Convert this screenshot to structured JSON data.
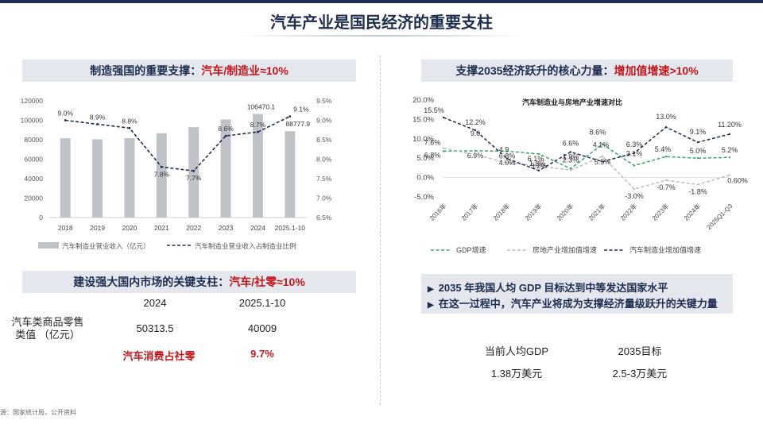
{
  "page_title": "汽车产业是国民经济的重要支柱",
  "left_banner_1": {
    "text": "制造强国的重要支撑：",
    "highlight": "汽车/制造业≈10%"
  },
  "right_banner_1": {
    "text": "支撑2035经济跃升的核心力量：",
    "highlight": "增加值增速>10%"
  },
  "left_banner_2": {
    "text": "建设强大国内市场的关键支柱：",
    "highlight": "汽车/社零≈10%"
  },
  "retail_table": {
    "col1": "2024",
    "col2": "2025.1-10",
    "row_label": "汽车类商品零售类值 （亿元）",
    "v1": "50313.5",
    "v2": "40009",
    "share_label": "汽车消费占社零",
    "share_value": "9.7%"
  },
  "bullets": [
    "2035 年我国人均 GDP 目标达到中等发达国家水平",
    "在这一过程中，汽车产业将成为支撑经济量级跃升的关键力量"
  ],
  "gdp_compare": {
    "h1": "当前人均GDP",
    "h2": "2035目标",
    "v1": "1.38万美元",
    "v2": "2.5-3万美元"
  },
  "footnote": "源：国家统计局，公开资料",
  "chart_data": [
    {
      "type": "bar",
      "categories": [
        "2018",
        "2019",
        "2020",
        "2021",
        "2022",
        "2023",
        "2024",
        "2025.1-10"
      ],
      "series": [
        {
          "name": "汽车制造业营业收入（亿元）",
          "type": "bar",
          "axis": "left",
          "color": "#bfc3c9",
          "values": [
            81500,
            80500,
            81600,
            86700,
            92900,
            100900,
            106470.1,
            88777.9
          ]
        },
        {
          "name": "汽车制造业营业收入占制造业比例",
          "type": "line",
          "axis": "right",
          "color": "#1f2d4f",
          "values": [
            9.0,
            8.9,
            8.8,
            7.8,
            7.7,
            8.6,
            8.7,
            9.1
          ]
        }
      ],
      "bar_labels": {
        "6": "106470.1",
        "7": "88777.9"
      },
      "line_labels": [
        "9.0%",
        "8.9%",
        "8.8%",
        "7.8%",
        "7.7%",
        "8.6%",
        "8.7%",
        "9.1%"
      ],
      "ylim": [
        0,
        120000
      ],
      "yticks": [
        "0",
        "20000",
        "40000",
        "60000",
        "80000",
        "100000",
        "120000"
      ],
      "y2lim": [
        6.5,
        9.5
      ],
      "y2ticks": [
        "6.5%",
        "7.0%",
        "7.5%",
        "8.0%",
        "8.5%",
        "9.0%",
        "9.5%"
      ],
      "legend_position": "bottom"
    },
    {
      "type": "line",
      "title": "汽车制造业与房地产业增速对比",
      "categories": [
        "2016年",
        "2017年",
        "2018年",
        "2019年",
        "2020年",
        "2021年",
        "2022年",
        "2023年",
        "2024年",
        "2025Q1-Q3"
      ],
      "series": [
        {
          "name": "GDP增速",
          "color": "#3aa56a",
          "style": "dashed",
          "values": [
            6.8,
            6.9,
            6.8,
            6.1,
            2.3,
            8.6,
            3.1,
            5.4,
            5.0,
            5.2
          ],
          "labels": [
            "6.8%",
            "6.9%",
            "6.8%",
            "6.1%",
            "2.3%",
            "8.6%",
            "3.1%",
            "5.4%",
            "5.0%",
            "5.2%"
          ]
        },
        {
          "name": "房地产业增加值增速",
          "color": "#b8bcc4",
          "style": "dashed",
          "values": [
            7.6,
            5.9,
            3.8,
            3.0,
            1.9,
            5.5,
            -3.0,
            -0.7,
            -1.8,
            0.6
          ],
          "labels": [
            "7.6%",
            "",
            "",
            "",
            "1.9%",
            "5.5%",
            "-3.0%",
            "-0.7%",
            "-1.8%",
            "0.60%"
          ]
        },
        {
          "name": "汽车制造业增加值增速",
          "color": "#1f2d4f",
          "style": "dashed",
          "values": [
            15.5,
            12.2,
            4.9,
            1.8,
            6.6,
            4.1,
            6.3,
            13.0,
            9.1,
            11.2
          ],
          "labels": [
            "15.5%",
            "12.2%",
            "4.9",
            "1.8%",
            "6.6%",
            "4.1%",
            "6.3%",
            "13.0%",
            "9.1%",
            "11.20%"
          ]
        }
      ],
      "extra_labels": [
        "9.0",
        "4.0%",
        "3.2%"
      ],
      "ylim": [
        -5,
        20
      ],
      "yticks": [
        "-5.0%",
        "0.0%",
        "5.0%",
        "10.0%",
        "15.0%",
        "20.0%"
      ],
      "legend_position": "bottom"
    }
  ]
}
